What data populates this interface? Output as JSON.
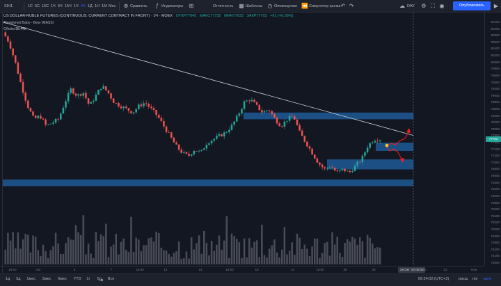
{
  "toolbar": {
    "symbol": "SIH1",
    "intervals": [
      "1С",
      "5С",
      "15С",
      "1Ч",
      "5Ч",
      "15Ч",
      "1Ч",
      "4Ч",
      "1Д",
      "1Н",
      "1М",
      "Мес"
    ],
    "active_interval_index": 7,
    "compare": "Сравнить",
    "indicators": "Индикаторы",
    "reports": "Отчетность",
    "templates": "Шаблоны",
    "alerts": "Оповещения",
    "replay": "Симулятор рынка",
    "day_label": "DAY",
    "publish": "Опубликовать"
  },
  "legend": {
    "title": "US DOLLAR-RUBLE FUTURES (CONTINUOUS: CURRENT CONTRACT IN FRONT) · 1Ч · MOEX",
    "open": "ОТКР77645",
    "high": "МАКС77725",
    "low": "МИН77633",
    "close": "ЗАКР77703",
    "change": "+61 (+0.08%)",
    "indicator": "Abandoned Baby - Bear",
    "indicator_source": "(MASS)",
    "volume_label": "Объём",
    "volume_value": "58.44K"
  },
  "price_axis": {
    "labels": [
      "81200",
      "81000",
      "80800",
      "80600",
      "80400",
      "80200",
      "80000",
      "79800",
      "79600",
      "79400",
      "79200",
      "79000",
      "78800",
      "78600",
      "78400",
      "78200",
      "78000",
      "77800",
      "77600",
      "77400",
      "77200",
      "77000",
      "76800",
      "76600",
      "76400",
      "76200",
      "76000",
      "75800",
      "75600",
      "75400",
      "75200",
      "75000",
      "74800",
      "74600",
      "74400",
      "74200",
      "74000"
    ],
    "current_price": "77703",
    "current_price_color": "#26a69a"
  },
  "time_axis": {
    "labels": [
      "18:00",
      "Окт",
      "5",
      "7",
      "18:00",
      "12",
      "14",
      "18:00",
      "19",
      "21",
      "18:00",
      "26",
      "28",
      "30",
      "31",
      "Ноя",
      "4"
    ],
    "cursor_label": "29 Окт '20   00:00"
  },
  "bottom_bar": {
    "ranges": [
      "1д",
      "5д",
      "1мес",
      "3мес",
      "6мес",
      "YTD",
      "1г",
      "5л",
      "Все"
    ],
    "time": "09:24:02 (UTC+3)",
    "options": [
      "расш",
      "лог",
      "авто"
    ]
  },
  "colors": {
    "up": "#26a69a",
    "down": "#ef5350",
    "zone": "#1e5a96",
    "trendline": "#d1d4dc",
    "arrows": "#ff1a1a",
    "marker": "#f0c030"
  },
  "chart_data": {
    "type": "candlestick",
    "symbol": "SIH1",
    "timeframe": "1Ч",
    "ylim": [
      74000,
      81200
    ],
    "close_path": [
      80900,
      80600,
      80000,
      79300,
      78700,
      78300,
      78400,
      78100,
      78200,
      78300,
      78800,
      79200,
      79000,
      79100,
      78700,
      79000,
      79300,
      79100,
      78800,
      78700,
      78600,
      78500,
      78700,
      78800,
      78600,
      78400,
      78100,
      77800,
      77500,
      77300,
      77200,
      77400,
      77300,
      77600,
      77700,
      77800,
      77900,
      78100,
      78400,
      78800,
      78900,
      78700,
      78500,
      78600,
      78300,
      78100,
      78300,
      78400,
      77900,
      77600,
      77300,
      77000,
      76800,
      76900,
      76700,
      76800,
      76700,
      76900,
      77100,
      77500,
      77700,
      77703
    ],
    "zones": [
      {
        "top": 78500,
        "bottom": 78300
      },
      {
        "top": 77600,
        "bottom": 77350
      },
      {
        "top": 77100,
        "bottom": 76800
      },
      {
        "top": 76500,
        "bottom": 76300
      }
    ],
    "trendline": {
      "from": 81000,
      "to": 77900
    }
  }
}
